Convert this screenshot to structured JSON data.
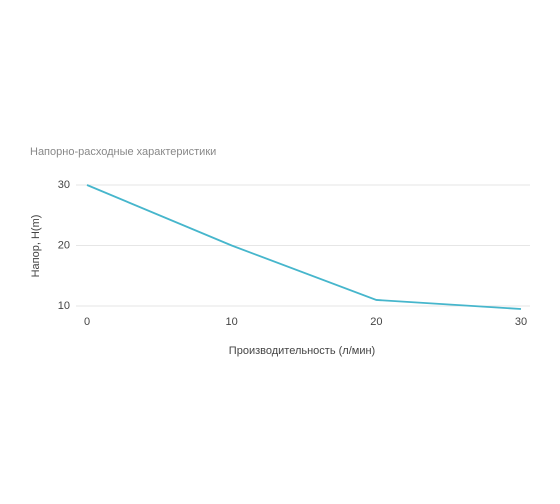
{
  "chart_data": {
    "type": "line",
    "title": "Напорно-расходные характеристики",
    "x_label": "Производительность (л/мин)",
    "y_label": "Напор, H(m)",
    "x": [
      0,
      10,
      20,
      30
    ],
    "series": [
      {
        "name": "Напор",
        "color": "#46b6cc",
        "values": [
          30,
          20,
          11,
          9.5
        ]
      }
    ],
    "xlim": [
      0,
      30
    ],
    "xticks": [
      0,
      10,
      20,
      30
    ],
    "ylim": [
      9.5,
      30
    ],
    "yticks": [
      10,
      20,
      30
    ],
    "grid": true
  }
}
